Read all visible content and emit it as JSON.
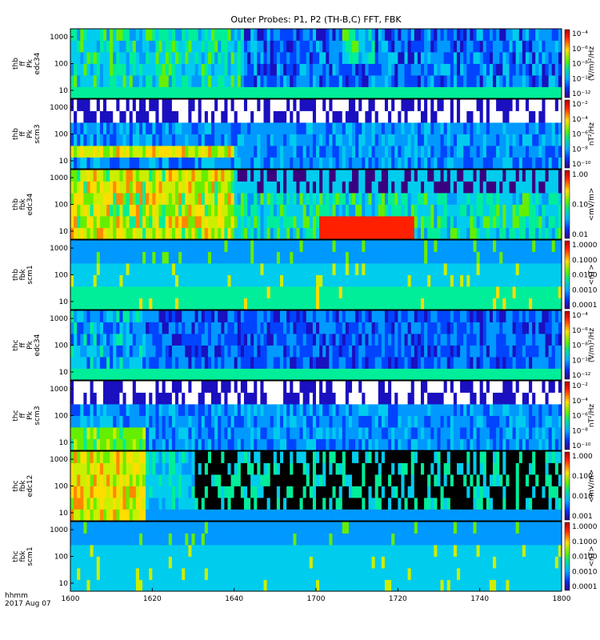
{
  "title": "Outer Probes: P1, P2 (TH-B,C) FFT, FBK",
  "time_axis": {
    "tick_labels": [
      "1600",
      "1620",
      "1640",
      "1700",
      "1720",
      "1740",
      "1800"
    ],
    "time_label": "hhmm",
    "date_label": "2017 Aug 07"
  },
  "colors": {
    "background_spectral": [
      "#ff0000",
      "#ffdd00",
      "#00ee66",
      "#00bbff",
      "#0044ff",
      "#3a0080"
    ],
    "noise": "#ffffff"
  },
  "chart_data": [
    {
      "type": "heatmap",
      "ylabel": [
        "thb",
        "ff",
        "Pk",
        "edc34"
      ],
      "y_ticks": [
        "10",
        "100",
        "1000"
      ],
      "y_scale": "log",
      "colorbar": {
        "ticks": [
          "10⁻⁴",
          "10⁻⁶",
          "10⁻⁸",
          "10⁻¹⁰",
          "10⁻¹²"
        ],
        "unit": "(V/m)²/Hz"
      }
    },
    {
      "type": "heatmap",
      "ylabel": [
        "thb",
        "ff",
        "Pk",
        "scm3"
      ],
      "y_ticks": [
        "10",
        "100",
        "1000"
      ],
      "y_scale": "log",
      "colorbar": {
        "ticks": [
          "10⁻²",
          "10⁻⁴",
          "10⁻⁶",
          "10⁻⁸",
          "10⁻¹⁰"
        ],
        "unit": "nT²/Hz"
      }
    },
    {
      "type": "heatmap",
      "ylabel": [
        "thb",
        "fbk",
        "edc34"
      ],
      "y_ticks": [
        "10",
        "100",
        "1000"
      ],
      "y_scale": "log",
      "colorbar": {
        "ticks": [
          "1.00",
          "0.10",
          "0.01"
        ],
        "unit": "<mV/m>"
      }
    },
    {
      "type": "heatmap",
      "ylabel": [
        "thb",
        "fbk",
        "scm1"
      ],
      "y_ticks": [
        "10",
        "100",
        "1000"
      ],
      "y_scale": "log",
      "colorbar": {
        "ticks": [
          "1.0000",
          "0.1000",
          "0.0100",
          "0.0010",
          "0.0001"
        ],
        "unit": "<nT>"
      }
    },
    {
      "type": "heatmap",
      "ylabel": [
        "thc",
        "ff",
        "Pk",
        "edc34"
      ],
      "y_ticks": [
        "10",
        "100",
        "1000"
      ],
      "y_scale": "log",
      "colorbar": {
        "ticks": [
          "10⁻⁴",
          "10⁻⁶",
          "10⁻⁸",
          "10⁻¹⁰",
          "10⁻¹²"
        ],
        "unit": "(V/m)²/Hz"
      }
    },
    {
      "type": "heatmap",
      "ylabel": [
        "thc",
        "ff",
        "Pk",
        "scm3"
      ],
      "y_ticks": [
        "10",
        "100",
        "1000"
      ],
      "y_scale": "log",
      "colorbar": {
        "ticks": [
          "10⁻²",
          "10⁻⁴",
          "10⁻⁶",
          "10⁻⁸",
          "10⁻¹⁰"
        ],
        "unit": "nT²/Hz"
      }
    },
    {
      "type": "heatmap",
      "ylabel": [
        "thc",
        "fbk",
        "edc12"
      ],
      "y_ticks": [
        "10",
        "100",
        "1000"
      ],
      "y_scale": "log",
      "colorbar": {
        "ticks": [
          "1.000",
          "0.100",
          "0.010",
          "0.001"
        ],
        "unit": "<mV/m>"
      }
    },
    {
      "type": "heatmap",
      "ylabel": [
        "thc",
        "fbk",
        "scm1"
      ],
      "y_ticks": [
        "10",
        "100",
        "1000"
      ],
      "y_scale": "log",
      "colorbar": {
        "ticks": [
          "1.0000",
          "0.1000",
          "0.0100",
          "0.0010",
          "0.0001"
        ],
        "unit": "<nT>"
      }
    }
  ]
}
